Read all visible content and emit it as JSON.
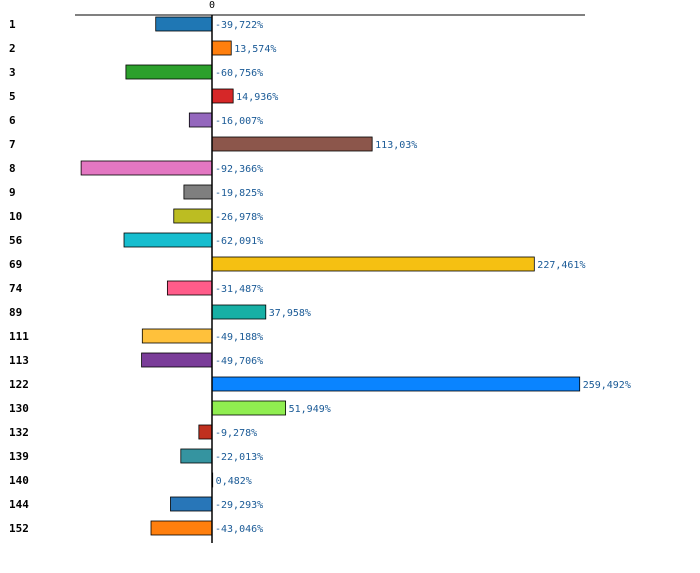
{
  "chart_data": {
    "type": "bar",
    "orientation": "horizontal",
    "title": "",
    "xlabel": "",
    "ylabel": "",
    "grid": false,
    "axis_tick_label": "0",
    "xlim": [
      -100,
      275
    ],
    "categories": [
      "1",
      "2",
      "3",
      "5",
      "6",
      "7",
      "8",
      "9",
      "10",
      "56",
      "69",
      "74",
      "89",
      "111",
      "113",
      "122",
      "130",
      "132",
      "139",
      "140",
      "144",
      "152"
    ],
    "values": [
      -39.722,
      13.574,
      -60.756,
      14.936,
      -16.007,
      113.03,
      -92.366,
      -19.825,
      -26.978,
      -62.091,
      227.461,
      -31.487,
      37.958,
      -49.188,
      -49.706,
      259.492,
      51.949,
      -9.278,
      -22.013,
      0.482,
      -29.293,
      -43.046
    ],
    "value_labels": [
      "-39,722%",
      "13,574%",
      "-60,756%",
      "14,936%",
      "-16,007%",
      "113,03%",
      "-92,366%",
      "-19,825%",
      "-26,978%",
      "-62,091%",
      "227,461%",
      "-31,487%",
      "37,958%",
      "-49,188%",
      "-49,706%",
      "259,492%",
      "51,949%",
      "-9,278%",
      "-22,013%",
      "0,482%",
      "-29,293%",
      "-43,046%"
    ],
    "colors": [
      "#1f77b4",
      "#ff7f0e",
      "#2ca02c",
      "#d62728",
      "#9467bd",
      "#8c564b",
      "#e377c2",
      "#7f7f7f",
      "#bcbd22",
      "#17becf",
      "#f5c012",
      "#ff5c8a",
      "#17b0a5",
      "#ffc13b",
      "#7a3d99",
      "#0a84ff",
      "#90ee50",
      "#c0301f",
      "#3594a0",
      "#e0e0e0",
      "#2876b8",
      "#ff7f0e"
    ]
  }
}
